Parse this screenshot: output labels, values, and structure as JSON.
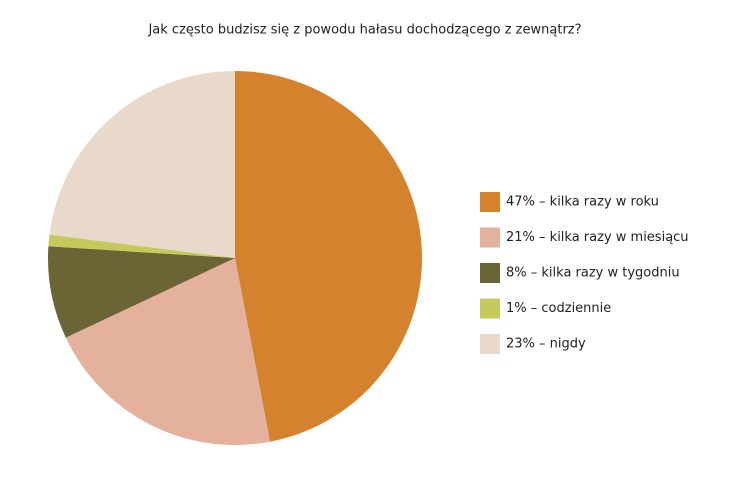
{
  "chart_data": {
    "type": "pie",
    "title": "Jak często budzisz się z powodu hałasu dochodzącego z zewnątrz?",
    "categories": [
      "47% – kilka razy w roku",
      "21% – kilka razy w miesiącu",
      "8% – kilka razy w tygodniu",
      "1% – codziennie",
      "23% – nigdy"
    ],
    "values": [
      47,
      21,
      8,
      1,
      23
    ],
    "colors": [
      "#d4822d",
      "#e4b19d",
      "#6b6536",
      "#c5c95c",
      "#e9d9ca"
    ]
  }
}
